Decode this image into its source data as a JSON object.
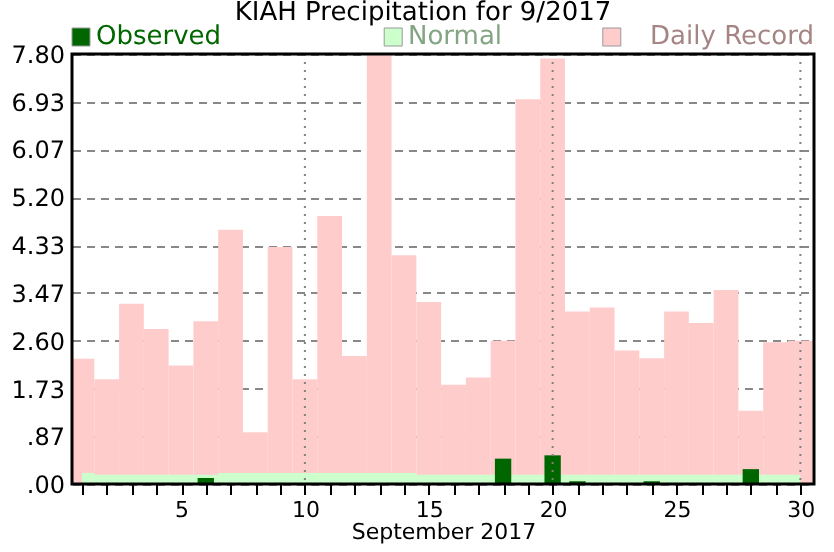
{
  "chart_data": {
    "type": "bar",
    "title": "KIAH Precipitation for 9/2017",
    "xlabel": "September 2017",
    "x": [
      1,
      2,
      3,
      4,
      5,
      6,
      7,
      8,
      9,
      10,
      11,
      12,
      13,
      14,
      15,
      16,
      17,
      18,
      19,
      20,
      21,
      22,
      23,
      24,
      25,
      26,
      27,
      28,
      29,
      30
    ],
    "series": [
      {
        "name": "Daily Record",
        "color": "#ffcccc",
        "values": [
          2.27,
          1.9,
          3.27,
          2.81,
          2.15,
          2.95,
          4.61,
          0.94,
          4.3,
          1.9,
          4.86,
          2.32,
          7.8,
          4.15,
          3.3,
          1.8,
          1.93,
          2.6,
          6.98,
          7.72,
          3.13,
          3.2,
          2.42,
          2.28,
          3.13,
          2.92,
          3.52,
          1.33,
          2.57,
          2.6
        ]
      },
      {
        "name": "Normal",
        "type": "area",
        "color": "#ccffcc",
        "values": [
          0.2,
          0.17,
          0.17,
          0.17,
          0.17,
          0.17,
          0.2,
          0.2,
          0.2,
          0.2,
          0.2,
          0.2,
          0.2,
          0.2,
          0.17,
          0.17,
          0.17,
          0.17,
          0.17,
          0.17,
          0.17,
          0.17,
          0.17,
          0.17,
          0.17,
          0.17,
          0.17,
          0.17,
          0.17,
          0.17
        ]
      },
      {
        "name": "Observed",
        "color": "#006600",
        "values": [
          0,
          0,
          0,
          0,
          0,
          0.11,
          0,
          0,
          0,
          0,
          0,
          0,
          0,
          0,
          0,
          0,
          0,
          0.46,
          0,
          0.52,
          0.05,
          0,
          0,
          0.05,
          0,
          0,
          0,
          0.27,
          0,
          0
        ]
      }
    ],
    "xlim": [
      0.6,
      30.55
    ],
    "xticks": [
      {
        "value": 1,
        "label": null
      },
      {
        "value": 2,
        "label": null
      },
      {
        "value": 3,
        "label": null
      },
      {
        "value": 4,
        "label": null
      },
      5,
      {
        "value": 6,
        "label": null
      },
      {
        "value": 7,
        "label": null
      },
      {
        "value": 8,
        "label": null
      },
      {
        "value": 9,
        "label": null
      },
      10,
      {
        "value": 11,
        "label": null
      },
      {
        "value": 12,
        "label": null
      },
      {
        "value": 13,
        "label": null
      },
      {
        "value": 14,
        "label": null
      },
      15,
      {
        "value": 16,
        "label": null
      },
      {
        "value": 17,
        "label": null
      },
      {
        "value": 18,
        "label": null
      },
      {
        "value": 19,
        "label": null
      },
      20,
      {
        "value": 21,
        "label": null
      },
      {
        "value": 22,
        "label": null
      },
      {
        "value": 23,
        "label": null
      },
      {
        "value": 24,
        "label": null
      },
      25,
      {
        "value": 26,
        "label": null
      },
      {
        "value": 27,
        "label": null
      },
      {
        "value": 28,
        "label": null
      },
      {
        "value": 29,
        "label": null
      },
      30
    ],
    "ylim": [
      0,
      7.8
    ],
    "yticks": [
      {
        "value": 0,
        "label": ".00"
      },
      {
        "value": 0.87,
        "label": ".87"
      },
      1.73,
      {
        "value": 2.6,
        "label": "2.60"
      },
      3.47,
      4.33,
      {
        "value": 5.2,
        "label": "5.20"
      },
      6.07,
      6.93,
      {
        "value": 7.8,
        "label": "7.80"
      }
    ],
    "grid": "y",
    "legend": "top",
    "ref_lines": [
      {
        "axis": "x",
        "value": 10,
        "line_style": "dotted",
        "color": "#808080"
      },
      {
        "axis": "x",
        "value": 20,
        "line_style": "dotted",
        "color": "#808080"
      },
      {
        "axis": "x",
        "value": 30,
        "line_style": "dotted",
        "color": "#808080"
      }
    ]
  }
}
